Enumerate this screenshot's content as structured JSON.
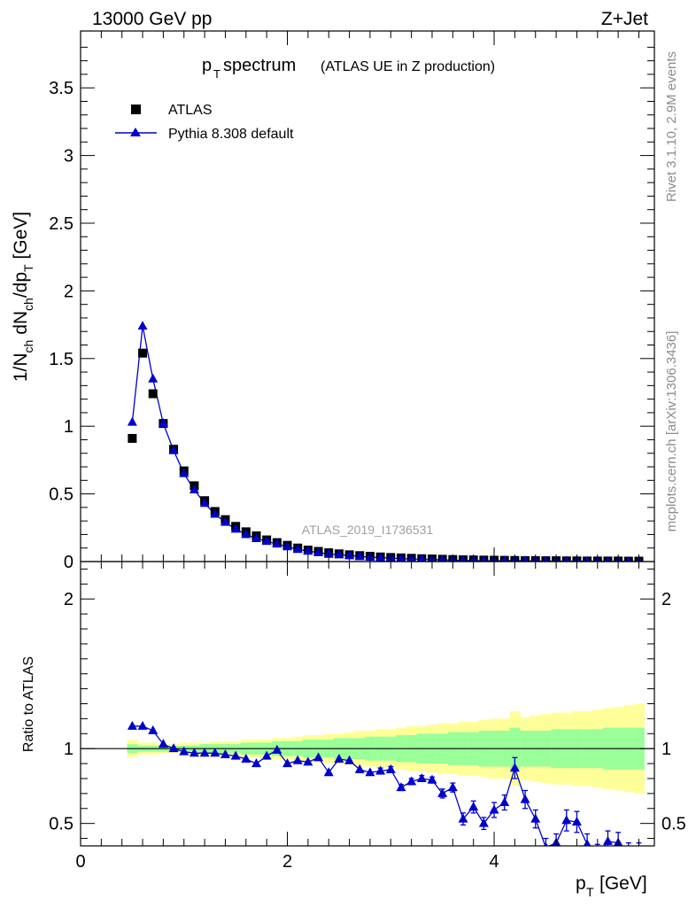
{
  "header": {
    "beam": "13000 GeV pp",
    "process": "Z+Jet",
    "title_main": "p",
    "title_sub": "T",
    "title_word": " spectrum",
    "title_paren": "(ATLAS UE in Z production)",
    "watermark": "ATLAS_2019_I1736531",
    "rivet_label": "Rivet 3.1.10,  2.9M events",
    "mcplots_label": "mcplots.cern.ch [arXiv:1306.3436]"
  },
  "colors": {
    "mc": "#0000cc",
    "data": "#000000",
    "band_stat": "#99ff99",
    "band_total": "#ffff99"
  },
  "chart_data": [
    {
      "type": "scatter",
      "title": "p_T spectrum (ATLAS UE in Z production)",
      "ylabel": "1/N_ch dN_ch/dp_T [GeV]",
      "xlim": [
        0,
        5.55
      ],
      "ylim": [
        0,
        3.92
      ],
      "yticks": [
        0,
        0.5,
        1,
        1.5,
        2,
        2.5,
        3,
        3.5
      ],
      "x": [
        0.5,
        0.6,
        0.7,
        0.8,
        0.9,
        1.0,
        1.1,
        1.2,
        1.3,
        1.4,
        1.5,
        1.6,
        1.7,
        1.8,
        1.9,
        2.0,
        2.1,
        2.2,
        2.3,
        2.4,
        2.5,
        2.6,
        2.7,
        2.8,
        2.9,
        3.0,
        3.1,
        3.2,
        3.3,
        3.4,
        3.5,
        3.6,
        3.7,
        3.8,
        3.9,
        4.0,
        4.1,
        4.2,
        4.3,
        4.4,
        4.5,
        4.6,
        4.7,
        4.8,
        4.9,
        5.0,
        5.1,
        5.2,
        5.3,
        5.4
      ],
      "legend": [
        "ATLAS",
        "Pythia 8.308 default"
      ],
      "series": [
        {
          "name": "ATLAS",
          "marker": "square",
          "values": [
            0.91,
            1.54,
            1.24,
            1.02,
            0.83,
            0.67,
            0.56,
            0.45,
            0.37,
            0.31,
            0.26,
            0.22,
            0.19,
            0.16,
            0.14,
            0.12,
            0.1,
            0.085,
            0.075,
            0.065,
            0.057,
            0.05,
            0.044,
            0.039,
            0.034,
            0.03,
            0.027,
            0.024,
            0.021,
            0.019,
            0.017,
            0.015,
            0.013,
            0.012,
            0.011,
            0.01,
            0.009,
            0.008,
            0.007,
            0.007,
            0.006,
            0.006,
            0.005,
            0.005,
            0.004,
            0.004,
            0.004,
            0.004,
            0.003,
            0.003
          ]
        },
        {
          "name": "Pythia 8.308 default",
          "marker": "triangle",
          "values": [
            1.03,
            1.74,
            1.35,
            1.02,
            0.82,
            0.65,
            0.53,
            0.43,
            0.35,
            0.29,
            0.24,
            0.2,
            0.17,
            0.15,
            0.13,
            0.11,
            0.09,
            0.077,
            0.066,
            0.054,
            0.051,
            0.045,
            0.037,
            0.033,
            0.029,
            0.026,
            0.02,
            0.019,
            0.017,
            0.015,
            0.012,
            0.011,
            0.007,
            0.007,
            0.006,
            0.006,
            0.006,
            0.007,
            0.005,
            0.004,
            0.003,
            0.003,
            0.003,
            0.003,
            0.002,
            0.002,
            0.002,
            0.002,
            0.001,
            0.001
          ]
        }
      ]
    },
    {
      "type": "line",
      "ylabel": "Ratio to ATLAS",
      "xlabel": "p_T [GeV]",
      "xlim": [
        0,
        5.55
      ],
      "ylim": [
        0.35,
        2.25
      ],
      "xticks": [
        0,
        2,
        4
      ],
      "yticks": [
        0.5,
        1,
        2
      ],
      "reference_line": 1,
      "x": [
        0.5,
        0.6,
        0.7,
        0.8,
        0.9,
        1.0,
        1.1,
        1.2,
        1.3,
        1.4,
        1.5,
        1.6,
        1.7,
        1.8,
        1.9,
        2.0,
        2.1,
        2.2,
        2.3,
        2.4,
        2.5,
        2.6,
        2.7,
        2.8,
        2.9,
        3.0,
        3.1,
        3.2,
        3.3,
        3.4,
        3.5,
        3.6,
        3.7,
        3.8,
        3.9,
        4.0,
        4.1,
        4.2,
        4.3,
        4.4,
        4.5,
        4.6,
        4.7,
        4.8,
        4.9,
        5.0,
        5.1,
        5.2,
        5.3,
        5.4
      ],
      "series": [
        {
          "name": "Pythia 8.308 default",
          "values": [
            1.15,
            1.15,
            1.12,
            1.03,
            1.0,
            0.98,
            0.97,
            0.97,
            0.97,
            0.96,
            0.95,
            0.93,
            0.9,
            0.95,
            0.99,
            0.9,
            0.92,
            0.91,
            0.94,
            0.84,
            0.93,
            0.92,
            0.86,
            0.84,
            0.85,
            0.86,
            0.74,
            0.78,
            0.8,
            0.79,
            0.7,
            0.74,
            0.53,
            0.61,
            0.5,
            0.59,
            0.64,
            0.87,
            0.66,
            0.53,
            0.34,
            0.37,
            0.52,
            0.51,
            0.36,
            0.29,
            0.38,
            0.37,
            0.3,
            0.3
          ],
          "errors": [
            0.01,
            0.01,
            0.01,
            0.01,
            0.01,
            0.01,
            0.01,
            0.01,
            0.01,
            0.01,
            0.01,
            0.01,
            0.01,
            0.01,
            0.01,
            0.01,
            0.01,
            0.01,
            0.01,
            0.01,
            0.01,
            0.01,
            0.01,
            0.01,
            0.02,
            0.02,
            0.02,
            0.02,
            0.02,
            0.02,
            0.03,
            0.03,
            0.04,
            0.04,
            0.04,
            0.05,
            0.05,
            0.07,
            0.06,
            0.06,
            0.06,
            0.06,
            0.07,
            0.07,
            0.07,
            0.07,
            0.07,
            0.07,
            0.07,
            0.07
          ]
        }
      ],
      "band_stat_halfwidth": [
        0.03,
        0.02,
        0.02,
        0.02,
        0.02,
        0.02,
        0.02,
        0.03,
        0.03,
        0.03,
        0.03,
        0.04,
        0.04,
        0.04,
        0.05,
        0.05,
        0.05,
        0.06,
        0.06,
        0.06,
        0.07,
        0.07,
        0.07,
        0.08,
        0.08,
        0.08,
        0.09,
        0.09,
        0.1,
        0.1,
        0.1,
        0.11,
        0.11,
        0.11,
        0.12,
        0.12,
        0.12,
        0.14,
        0.12,
        0.12,
        0.12,
        0.13,
        0.13,
        0.13,
        0.13,
        0.13,
        0.14,
        0.14,
        0.14,
        0.14
      ],
      "band_total_halfwidth": [
        0.06,
        0.04,
        0.04,
        0.03,
        0.03,
        0.04,
        0.04,
        0.04,
        0.05,
        0.05,
        0.05,
        0.06,
        0.06,
        0.06,
        0.07,
        0.07,
        0.08,
        0.09,
        0.09,
        0.1,
        0.1,
        0.11,
        0.12,
        0.12,
        0.13,
        0.13,
        0.14,
        0.15,
        0.15,
        0.16,
        0.17,
        0.17,
        0.18,
        0.18,
        0.19,
        0.2,
        0.2,
        0.25,
        0.21,
        0.22,
        0.23,
        0.24,
        0.24,
        0.25,
        0.25,
        0.26,
        0.27,
        0.28,
        0.29,
        0.3
      ]
    }
  ]
}
